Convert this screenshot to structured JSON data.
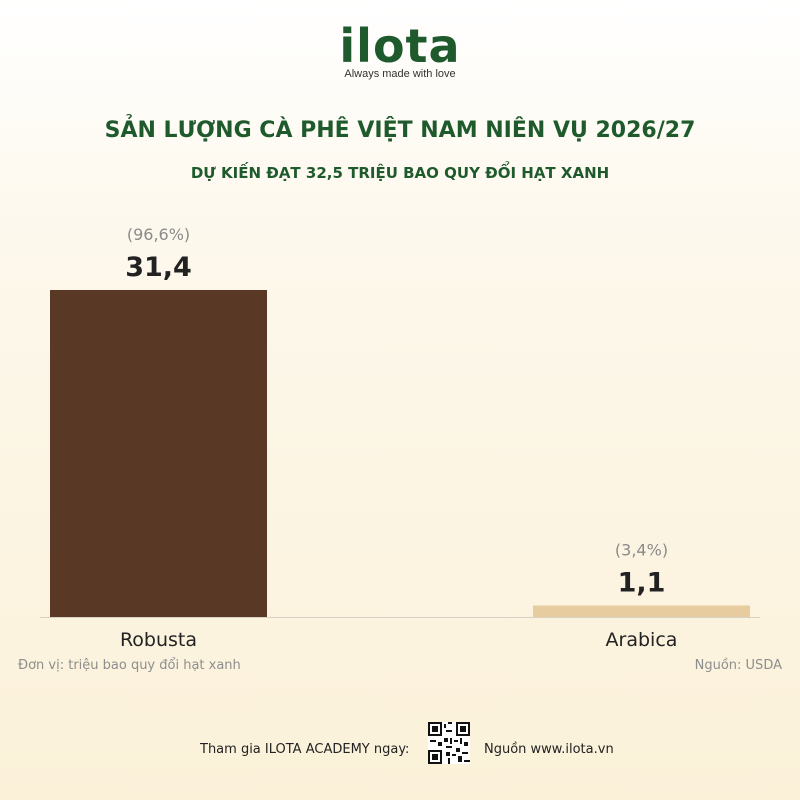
{
  "brand": {
    "name": "ilota",
    "tagline": "Always made with love"
  },
  "heading": {
    "title": "SẢN LƯỢNG CÀ PHÊ VIỆT NAM NIÊN VỤ 2026/27",
    "subtitle": "DỰ KIẾN ĐẠT 32,5 TRIỆU BAO QUY ĐỔI HẠT XANH"
  },
  "chart_data": {
    "type": "bar",
    "categories": [
      "Robusta",
      "Arabica"
    ],
    "values": [
      31.4,
      1.1
    ],
    "value_labels": [
      "31,4",
      "1,1"
    ],
    "share_labels": [
      "(96,6%)",
      "(3,4%)"
    ],
    "colors": [
      "#5a3826",
      "#e6cc9f"
    ],
    "ylim": [
      0,
      31.4
    ],
    "grid": false,
    "legend": "none"
  },
  "notes": {
    "unit": "Đơn vị: triệu bao quy đổi hạt xanh",
    "source": "Nguồn: USDA"
  },
  "footer": {
    "join_text": "Tham gia ILOTA ACADEMY ngay:",
    "qr_icon": "qr-code-icon",
    "site_text": "Nguồn www.ilota.vn"
  }
}
